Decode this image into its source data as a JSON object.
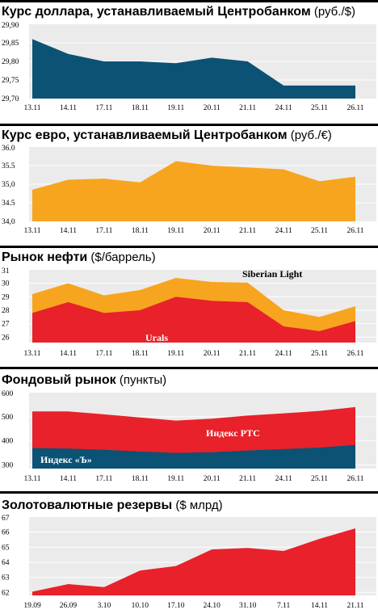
{
  "colors": {
    "usd": "#0b5275",
    "eur": "#f7a51f",
    "siberian": "#f7a51f",
    "urals": "#e8212a",
    "rts": "#e8212a",
    "kommersant": "#0b5275",
    "reserves": "#e8212a",
    "bg": "#ebebeb",
    "grid": "#ffffff",
    "divider": "#000000"
  },
  "chart_data": [
    {
      "type": "area",
      "title": "Курс доллара, устанавливаемый Центробанком",
      "unit": "(руб./$)",
      "categories": [
        "13.11",
        "14.11",
        "17.11",
        "18.11",
        "19.11",
        "20.11",
        "21.11",
        "24.11",
        "25.11",
        "26.11"
      ],
      "series": [
        {
          "values": [
            29.86,
            29.82,
            29.8,
            29.8,
            29.795,
            29.81,
            29.8,
            29.735,
            29.735,
            29.735
          ]
        }
      ],
      "yticks": [
        "29,70",
        "29,75",
        "29,80",
        "29,85",
        "29,90"
      ],
      "ylim": [
        29.7,
        29.9
      ],
      "grid": true
    },
    {
      "type": "area",
      "title": "Курс евро, устанавливаемый Центробанком",
      "unit": "(руб./€)",
      "categories": [
        "13.11",
        "14.11",
        "17.11",
        "18.11",
        "19.11",
        "20.11",
        "21.11",
        "24.11",
        "25.11",
        "26.11"
      ],
      "series": [
        {
          "values": [
            34.85,
            35.12,
            35.15,
            35.05,
            35.62,
            35.5,
            35.45,
            35.4,
            35.08,
            35.2
          ]
        }
      ],
      "yticks": [
        "34,0",
        "34.5",
        "35,0",
        "35.5",
        "36.0"
      ],
      "ylim": [
        34.0,
        36.0
      ],
      "grid": true
    },
    {
      "type": "area",
      "title": "Рынок нефти",
      "unit": "($/баррель)",
      "categories": [
        "13.11",
        "14.11",
        "17.11",
        "18.11",
        "19.11",
        "20.11",
        "21.11",
        "24.11",
        "25.11",
        "26.11"
      ],
      "series": [
        {
          "name": "Siberian Light",
          "values": [
            29.2,
            30.0,
            29.1,
            29.5,
            30.4,
            30.1,
            30.05,
            28.0,
            27.5,
            28.3
          ]
        },
        {
          "name": "Urals",
          "values": [
            27.8,
            28.6,
            27.8,
            28.0,
            29.0,
            28.7,
            28.6,
            26.8,
            26.45,
            27.2
          ]
        }
      ],
      "yticks": [
        "26",
        "27",
        "28",
        "29",
        "30",
        "31"
      ],
      "ylim": [
        25.6,
        31.0
      ],
      "grid": true
    },
    {
      "type": "area",
      "title": "Фондовый рынок",
      "unit": "(пункты)",
      "categories": [
        "13.11",
        "14.11",
        "17.11",
        "18.11",
        "19.11",
        "20.11",
        "21.11",
        "24.11",
        "25.11",
        "26.11"
      ],
      "series": [
        {
          "name": "Индекс РТС",
          "values": [
            522,
            522,
            510,
            497,
            484,
            492,
            505,
            514,
            524,
            540
          ]
        },
        {
          "name": "Индекс «Ъ»",
          "values": [
            370,
            368,
            363,
            356,
            350,
            353,
            360,
            366,
            372,
            383
          ]
        }
      ],
      "yticks": [
        "300",
        "400",
        "500",
        "600"
      ],
      "ylim": [
        285,
        600
      ],
      "grid": true
    },
    {
      "type": "area",
      "title": "Золотовалютные резервы",
      "unit": "($ млрд)",
      "categories": [
        "19.09",
        "26.09",
        "3.10",
        "10.10",
        "17.10",
        "24.10",
        "31.10",
        "7.11",
        "14.11",
        "21.11"
      ],
      "series": [
        {
          "values": [
            62.05,
            62.55,
            62.35,
            63.45,
            63.75,
            64.85,
            64.95,
            64.75,
            65.55,
            66.25
          ]
        }
      ],
      "yticks": [
        "62",
        "63",
        "64",
        "65",
        "66",
        "67"
      ],
      "ylim": [
        61.8,
        67.0
      ],
      "grid": true
    }
  ]
}
